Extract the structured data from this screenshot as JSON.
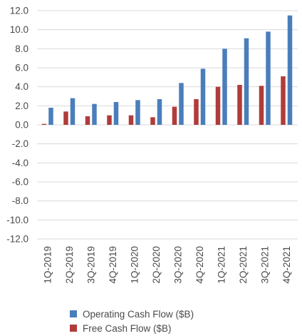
{
  "chart_data": {
    "type": "bar",
    "categories": [
      "1Q-2019",
      "2Q-2019",
      "3Q-2019",
      "4Q-2019",
      "1Q-2020",
      "2Q-2020",
      "3Q-2020",
      "4Q-2020",
      "1Q-2021",
      "2Q-2021",
      "3Q-2021",
      "4Q-2021"
    ],
    "series": [
      {
        "name": "Operating Cash Flow ($B)",
        "color": "#4a7ebb",
        "values": [
          1.8,
          2.8,
          2.2,
          2.4,
          2.6,
          2.7,
          4.4,
          5.9,
          8.0,
          9.1,
          9.8,
          11.5
        ]
      },
      {
        "name": "Free Cash Flow ($B)",
        "color": "#b03c3a",
        "values": [
          0.1,
          1.4,
          0.9,
          1.0,
          1.0,
          0.8,
          1.9,
          2.7,
          4.0,
          4.2,
          4.1,
          5.1
        ]
      }
    ],
    "ylim": [
      -12,
      12
    ],
    "yticks": [
      "12.0",
      "10.0",
      "8.0",
      "6.0",
      "4.0",
      "2.0",
      "0.0",
      "-2.0",
      "-4.0",
      "-6.0",
      "-8.0",
      "-10.0",
      "-12.0"
    ],
    "grid": true,
    "legend_position": "bottom"
  }
}
